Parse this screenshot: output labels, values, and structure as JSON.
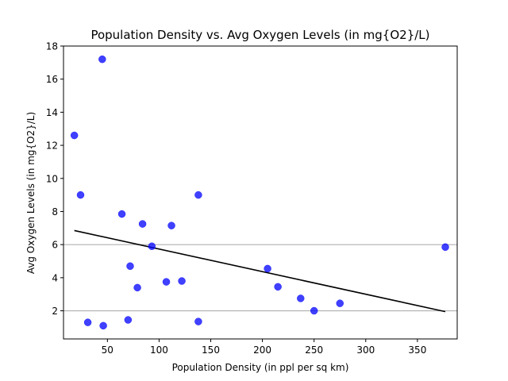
{
  "chart_data": {
    "type": "scatter",
    "title": "Population Density vs. Avg Oxygen Levels (in mg{O2}/L)",
    "xlabel": "Population Density (in ppl per sq km)",
    "ylabel": "Avg Oxygen Levels (in mg{O2}/L)",
    "xlim": [
      7.5,
      388.5
    ],
    "ylim": [
      0.3,
      18.0
    ],
    "xticks": [
      50,
      100,
      150,
      200,
      250,
      300,
      350
    ],
    "yticks": [
      2,
      4,
      6,
      8,
      10,
      12,
      14,
      16,
      18
    ],
    "grid_y": [
      2,
      6
    ],
    "point_color": "#0000ff",
    "line_color": "#000000",
    "grid_color": "#b0b0b0",
    "points": [
      {
        "x": 18,
        "y": 12.6
      },
      {
        "x": 24,
        "y": 9.0
      },
      {
        "x": 31,
        "y": 1.3
      },
      {
        "x": 45,
        "y": 17.2
      },
      {
        "x": 46,
        "y": 1.1
      },
      {
        "x": 64,
        "y": 7.85
      },
      {
        "x": 70,
        "y": 1.45
      },
      {
        "x": 72,
        "y": 4.7
      },
      {
        "x": 79,
        "y": 3.4
      },
      {
        "x": 84,
        "y": 7.25
      },
      {
        "x": 93,
        "y": 5.9
      },
      {
        "x": 107,
        "y": 3.75
      },
      {
        "x": 112,
        "y": 7.15
      },
      {
        "x": 122,
        "y": 3.8
      },
      {
        "x": 138,
        "y": 9.0
      },
      {
        "x": 138,
        "y": 1.35
      },
      {
        "x": 205,
        "y": 4.55
      },
      {
        "x": 215,
        "y": 3.45
      },
      {
        "x": 237,
        "y": 2.75
      },
      {
        "x": 250,
        "y": 2.0
      },
      {
        "x": 275,
        "y": 2.45
      },
      {
        "x": 377,
        "y": 5.85
      }
    ],
    "trendline": {
      "x": [
        18,
        377
      ],
      "y": [
        6.85,
        1.95
      ]
    }
  }
}
